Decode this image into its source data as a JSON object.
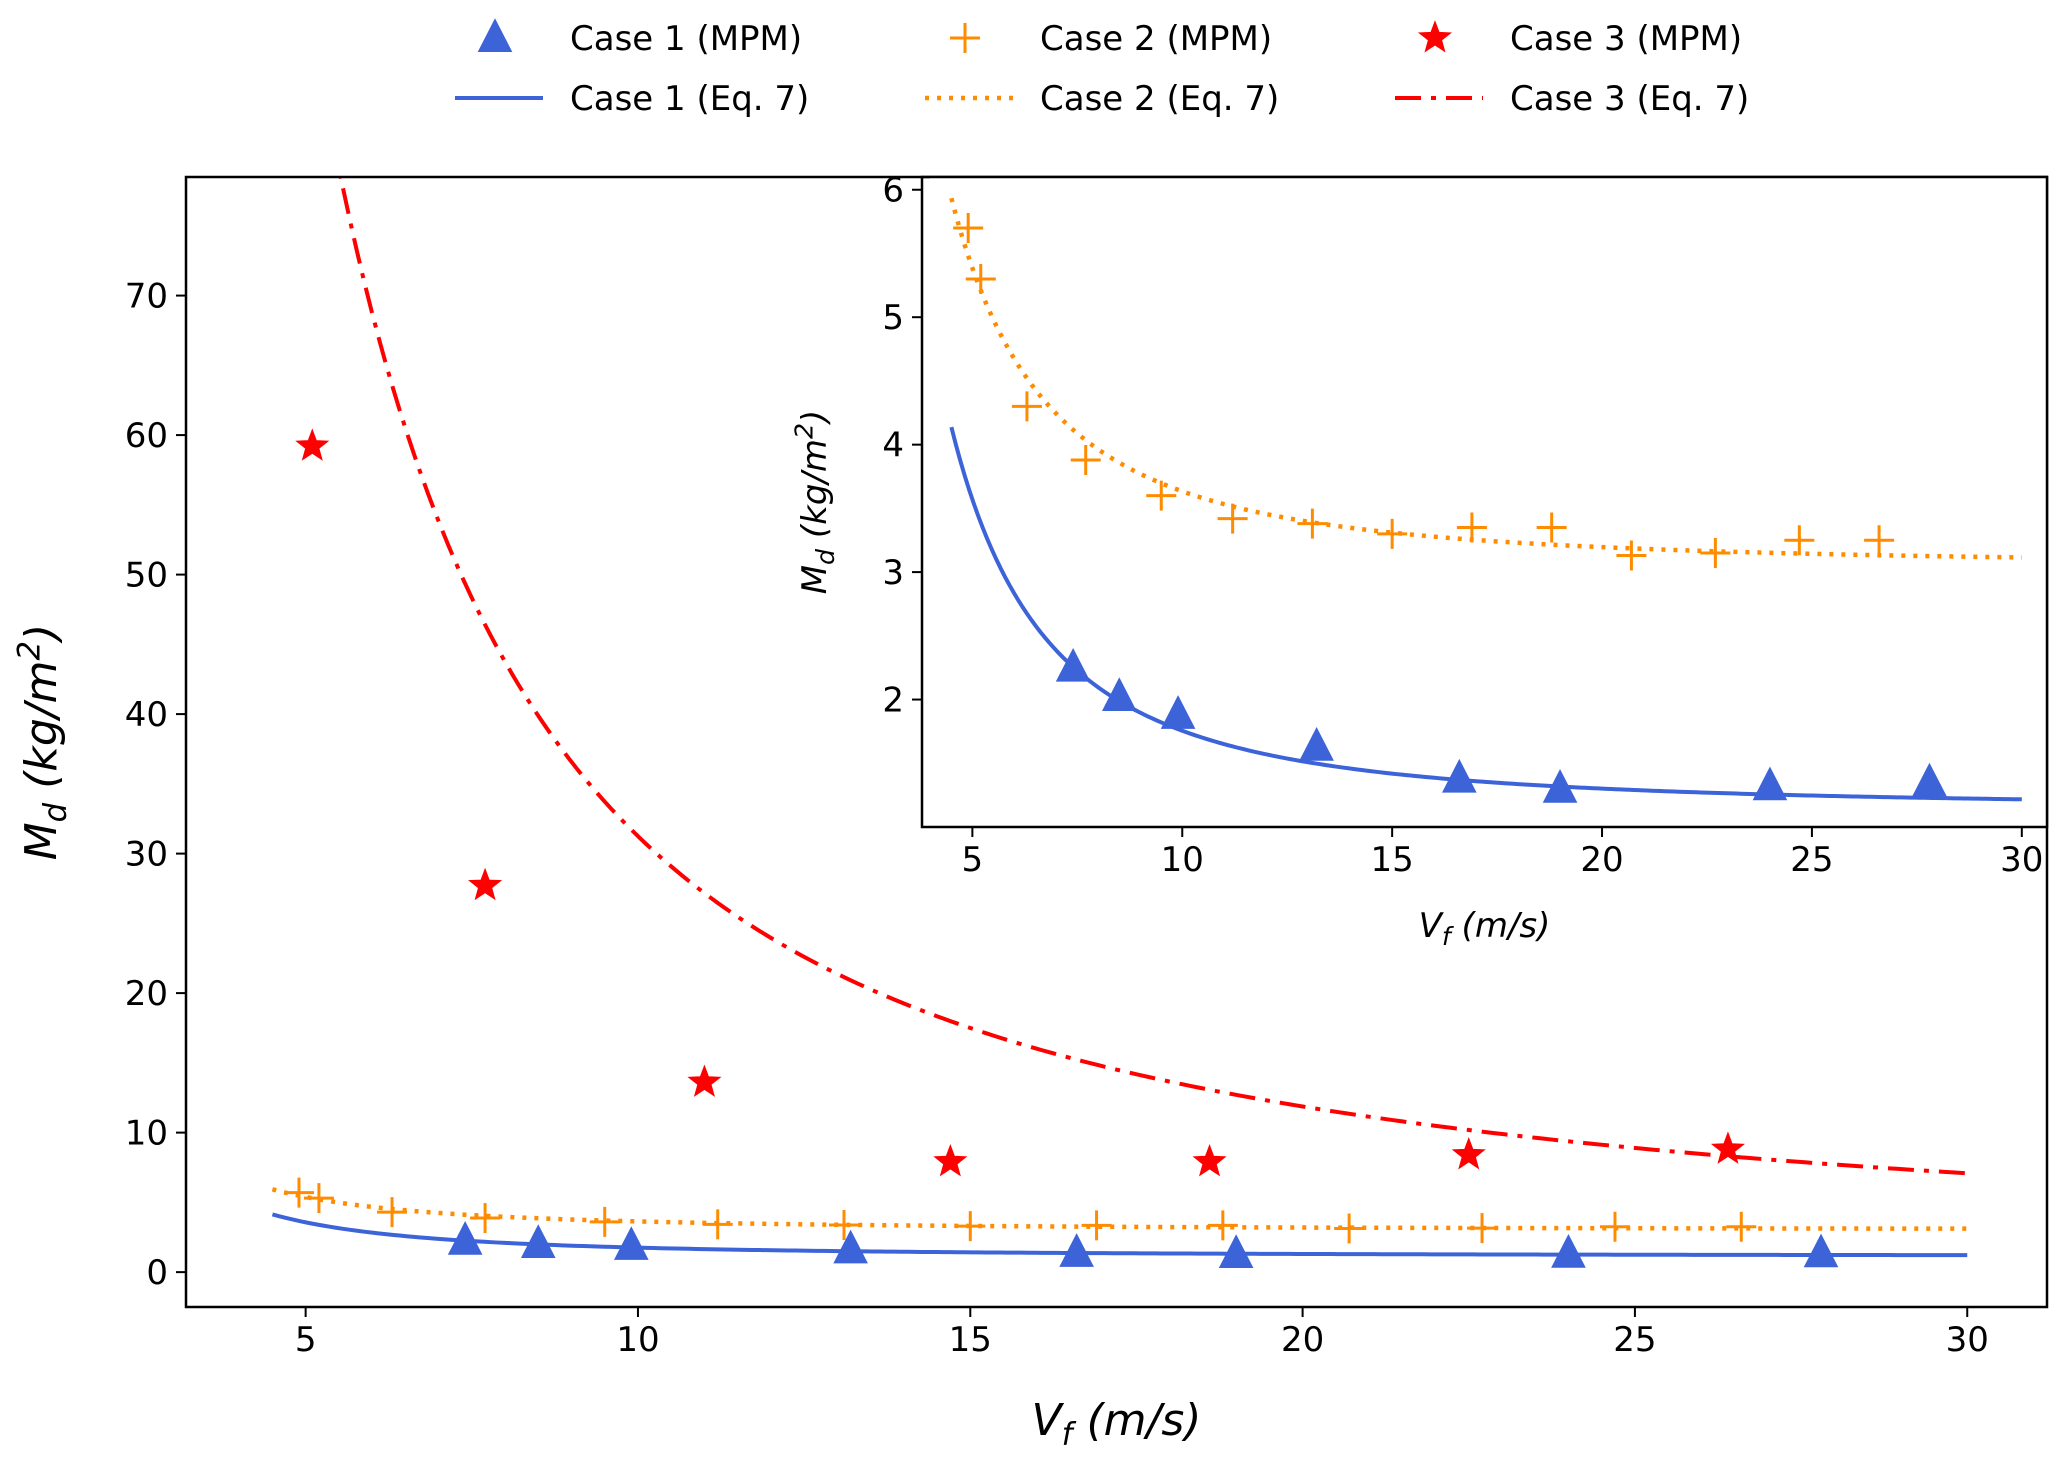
{
  "chart_data": {
    "type": "line",
    "title": "",
    "legend": {
      "placement": "top-center",
      "entries": [
        {
          "label": "Case 1 (MPM)",
          "series": "case1_mpm"
        },
        {
          "label": "Case 2 (MPM)",
          "series": "case2_mpm"
        },
        {
          "label": "Case 3 (MPM)",
          "series": "case3_mpm"
        },
        {
          "label": "Case 1 (Eq. 7)",
          "series": "case1_eq"
        },
        {
          "label": "Case 2 (Eq. 7)",
          "series": "case2_eq"
        },
        {
          "label": "Case 3 (Eq. 7)",
          "series": "case3_eq"
        }
      ]
    },
    "main": {
      "xlabel": "V_f (m/s)",
      "ylabel": "M_d (kg/m^2)",
      "xlim": [
        3.2,
        31.2
      ],
      "ylim": [
        -2.5,
        78.5
      ],
      "xticks": [
        5,
        10,
        15,
        20,
        25,
        30
      ],
      "yticks": [
        0,
        10,
        20,
        30,
        40,
        50,
        60,
        70
      ]
    },
    "inset": {
      "xlabel": "V_f (m/s)",
      "ylabel": "M_d (kg/m^2)",
      "xlim": [
        3.8,
        30.6
      ],
      "ylim": [
        1.0,
        6.1
      ],
      "xticks": [
        5,
        10,
        15,
        20,
        25,
        30
      ],
      "yticks": [
        2,
        3,
        4,
        5,
        6
      ]
    },
    "series": [
      {
        "name": "Case 1 (MPM)",
        "id": "case1_mpm",
        "kind": "marker",
        "marker": "triangle",
        "color": "#3d63d9",
        "x": [
          7.4,
          8.5,
          9.9,
          13.2,
          16.6,
          19.0,
          24.0,
          27.8
        ],
        "y": [
          2.25,
          2.02,
          1.88,
          1.63,
          1.38,
          1.3,
          1.32,
          1.35
        ]
      },
      {
        "name": "Case 2 (MPM)",
        "id": "case2_mpm",
        "kind": "marker",
        "marker": "plus",
        "color": "#ff8c00",
        "x": [
          4.9,
          5.2,
          6.3,
          7.7,
          9.5,
          11.2,
          13.1,
          15.0,
          16.9,
          18.8,
          20.7,
          22.7,
          24.7,
          26.6
        ],
        "y": [
          5.7,
          5.3,
          4.3,
          3.88,
          3.6,
          3.42,
          3.38,
          3.3,
          3.35,
          3.35,
          3.13,
          3.15,
          3.25,
          3.25
        ]
      },
      {
        "name": "Case 3 (MPM)",
        "id": "case3_mpm",
        "kind": "marker",
        "marker": "star",
        "color": "#ff0000",
        "x": [
          5.1,
          7.7,
          11.0,
          14.7,
          18.6,
          22.5,
          26.4
        ],
        "y": [
          59.2,
          27.7,
          13.6,
          7.9,
          7.9,
          8.4,
          8.8
        ]
      },
      {
        "name": "Case 1 (Eq. 7)",
        "id": "case1_eq",
        "kind": "line",
        "style": "solid",
        "color": "#3d63d9",
        "equation": {
          "a": 1.15,
          "b": 60.5,
          "p": 2
        },
        "xrange": [
          4.5,
          30.0
        ]
      },
      {
        "name": "Case 2 (Eq. 7)",
        "id": "case2_eq",
        "kind": "line",
        "style": "dotted",
        "color": "#ff8c00",
        "equation": {
          "a": 3.05,
          "b": 58.4,
          "p": 2
        },
        "xrange": [
          4.5,
          30.0
        ]
      },
      {
        "name": "Case 3 (Eq. 7)",
        "id": "case3_eq",
        "kind": "line",
        "style": "dashdot",
        "color": "#ff0000",
        "equation": {
          "a": 0.0,
          "b": 1500.0,
          "p": 2,
          "c": 0.0,
          "d": 162.5,
          "q": 1
        },
        "xrange": [
          4.5,
          30.0
        ]
      }
    ]
  }
}
